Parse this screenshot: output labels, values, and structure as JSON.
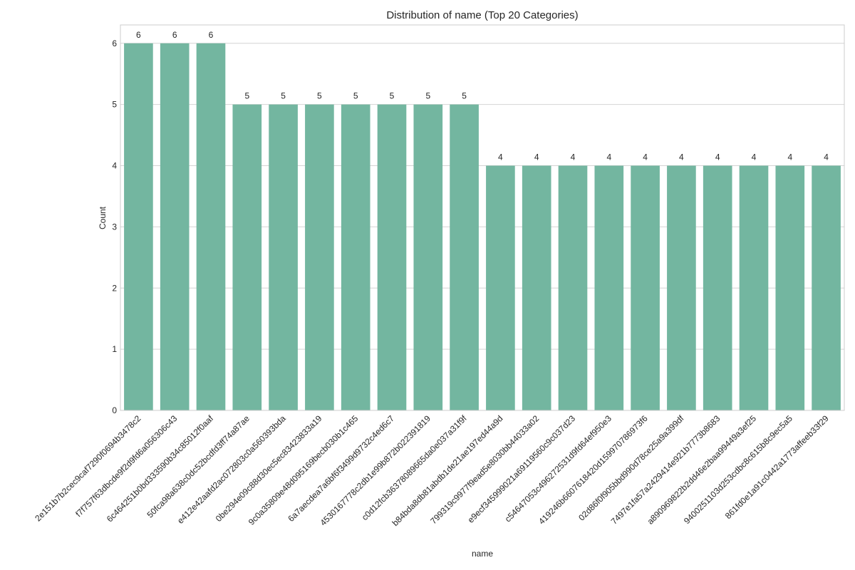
{
  "chart_data": {
    "type": "bar",
    "title": "Distribution of name (Top 20 Categories)",
    "xlabel": "name",
    "ylabel": "Count",
    "ylim": [
      0,
      6.3
    ],
    "yticks": [
      0,
      1,
      2,
      3,
      4,
      5,
      6
    ],
    "grid": true,
    "bar_color": "#73b6a0",
    "categories": [
      "2e151b7b2cec9caf7290f0694b3478c2",
      "f7f757f63dbcde9f2d9fd6a056306c43",
      "6c464251b0bd333590b34c85012f0aaf",
      "50fca98a638c0dc52bcdfd3ff74a87ae",
      "e412e42aafd2ac072803c0a560393bda",
      "0be294e09c88d30ec5ec83423833a19",
      "9c0a35809e48d095169becb030b1c465",
      "6a7aecdea7a6bf6f3499d9732c4ed6c7",
      "453016777 8c2db1e99b872b022391819",
      "c0d12fcb36378089665da0e037a31f9f",
      "b84bda8db81abdb1de21ae197ed44a9d",
      "799319c9977f9ead5e8030bb44033a02",
      "e9ecf345999021a6911956 0c9c037d23",
      "c54647053c496272531d9fd64ef950e3",
      "419246b6607618420d1599707869 73f6",
      "02d86f0f905bbd990d78ce25a9a399df",
      "7497e1fa57a2429414e921b7773b8683",
      "a89096982 2b2dd46e2baa99449a3ef25",
      "9400251103d253cdbc8c615b8c9ec5a5",
      "861fd0e1a91c0442a1773affeeb33f29"
    ],
    "values": [
      6,
      6,
      6,
      5,
      5,
      5,
      5,
      5,
      5,
      5,
      4,
      4,
      4,
      4,
      4,
      4,
      4,
      4,
      4,
      4
    ]
  }
}
